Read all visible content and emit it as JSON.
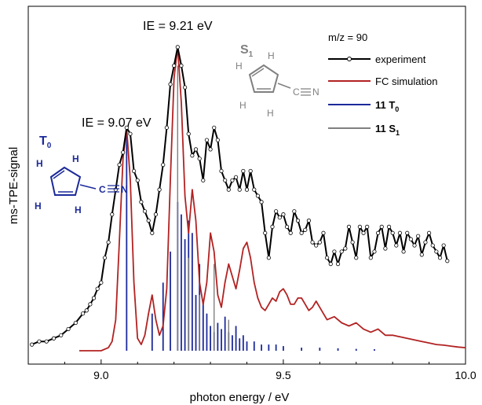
{
  "chart_data": {
    "type": "line",
    "xlabel": "photon energy / eV",
    "ylabel": "ms-TPE-signal",
    "xlim": [
      8.8,
      10.0
    ],
    "ylim": [
      0,
      1.0
    ],
    "x_ticks": [
      "9.0",
      "9.5",
      "10.0"
    ],
    "legend_header": "m/z = 90",
    "legend_position": "top-right",
    "annotations": [
      {
        "label": "IE = 9.21 eV",
        "x": 9.21,
        "y": 0.98
      },
      {
        "label": "IE = 9.07 eV",
        "x": 9.07,
        "y": 0.72
      }
    ],
    "structures": [
      {
        "label": "S",
        "sub": "1",
        "color": "#808080",
        "atoms": [
          "H",
          "H",
          "H",
          "H",
          "C",
          "N"
        ]
      },
      {
        "label": "T",
        "sub": "0",
        "color": "#1c2a9a",
        "atoms": [
          "H",
          "H",
          "H",
          "H",
          "C",
          "N"
        ]
      }
    ],
    "series": [
      {
        "name": "experiment",
        "color": "#000000",
        "marker": "open-circle",
        "x": [
          8.81,
          8.83,
          8.85,
          8.87,
          8.89,
          8.91,
          8.93,
          8.95,
          8.96,
          8.97,
          8.98,
          8.99,
          9.0,
          9.01,
          9.02,
          9.03,
          9.04,
          9.05,
          9.06,
          9.07,
          9.08,
          9.09,
          9.1,
          9.11,
          9.12,
          9.13,
          9.14,
          9.15,
          9.16,
          9.17,
          9.18,
          9.19,
          9.2,
          9.21,
          9.22,
          9.23,
          9.24,
          9.25,
          9.26,
          9.27,
          9.28,
          9.29,
          9.3,
          9.31,
          9.32,
          9.33,
          9.34,
          9.35,
          9.36,
          9.37,
          9.38,
          9.39,
          9.4,
          9.41,
          9.42,
          9.43,
          9.44,
          9.45,
          9.46,
          9.47,
          9.48,
          9.49,
          9.5,
          9.51,
          9.52,
          9.53,
          9.54,
          9.55,
          9.56,
          9.57,
          9.58,
          9.59,
          9.6,
          9.61,
          9.62,
          9.63,
          9.64,
          9.65,
          9.66,
          9.67,
          9.68,
          9.69,
          9.7,
          9.71,
          9.72,
          9.73,
          9.74,
          9.75,
          9.76,
          9.77,
          9.78,
          9.79,
          9.8,
          9.81,
          9.82,
          9.83,
          9.84,
          9.85,
          9.86,
          9.87,
          9.88,
          9.89,
          9.9,
          9.91,
          9.92,
          9.93,
          9.94,
          9.95
        ],
        "y": [
          0.02,
          0.03,
          0.03,
          0.04,
          0.05,
          0.07,
          0.09,
          0.12,
          0.13,
          0.15,
          0.17,
          0.2,
          0.22,
          0.3,
          0.35,
          0.44,
          0.52,
          0.6,
          0.64,
          0.72,
          0.7,
          0.58,
          0.55,
          0.48,
          0.45,
          0.42,
          0.38,
          0.44,
          0.52,
          0.6,
          0.72,
          0.86,
          0.92,
          0.98,
          0.92,
          0.85,
          0.7,
          0.63,
          0.65,
          0.62,
          0.55,
          0.68,
          0.65,
          0.72,
          0.68,
          0.58,
          0.55,
          0.52,
          0.55,
          0.56,
          0.52,
          0.58,
          0.52,
          0.58,
          0.52,
          0.5,
          0.48,
          0.38,
          0.3,
          0.4,
          0.45,
          0.43,
          0.44,
          0.4,
          0.38,
          0.45,
          0.42,
          0.38,
          0.39,
          0.42,
          0.35,
          0.34,
          0.35,
          0.38,
          0.3,
          0.28,
          0.32,
          0.28,
          0.32,
          0.33,
          0.4,
          0.35,
          0.3,
          0.4,
          0.38,
          0.4,
          0.3,
          0.32,
          0.38,
          0.4,
          0.33,
          0.4,
          0.38,
          0.34,
          0.38,
          0.32,
          0.38,
          0.36,
          0.34,
          0.37,
          0.31,
          0.35,
          0.38,
          0.34,
          0.32,
          0.3,
          0.34,
          0.29
        ]
      },
      {
        "name": "FC simulation",
        "color": "#b22222",
        "x": [
          8.94,
          8.96,
          8.98,
          9.0,
          9.02,
          9.03,
          9.04,
          9.05,
          9.06,
          9.07,
          9.08,
          9.09,
          9.1,
          9.11,
          9.12,
          9.13,
          9.14,
          9.15,
          9.16,
          9.17,
          9.18,
          9.19,
          9.2,
          9.21,
          9.22,
          9.23,
          9.24,
          9.25,
          9.26,
          9.27,
          9.28,
          9.29,
          9.3,
          9.31,
          9.32,
          9.33,
          9.34,
          9.35,
          9.36,
          9.37,
          9.38,
          9.39,
          9.4,
          9.41,
          9.42,
          9.43,
          9.44,
          9.45,
          9.46,
          9.47,
          9.48,
          9.49,
          9.5,
          9.51,
          9.52,
          9.53,
          9.54,
          9.55,
          9.56,
          9.57,
          9.58,
          9.59,
          9.6,
          9.62,
          9.64,
          9.66,
          9.68,
          9.7,
          9.72,
          9.74,
          9.76,
          9.78,
          9.8,
          9.82,
          9.84,
          9.86,
          9.88,
          9.9,
          9.92,
          9.94,
          9.96,
          9.98,
          10.0
        ],
        "y": [
          0.0,
          0.0,
          0.0,
          0.0,
          0.01,
          0.03,
          0.1,
          0.35,
          0.62,
          0.72,
          0.55,
          0.22,
          0.04,
          0.02,
          0.05,
          0.12,
          0.18,
          0.1,
          0.05,
          0.08,
          0.2,
          0.55,
          0.88,
          0.98,
          0.8,
          0.5,
          0.38,
          0.52,
          0.42,
          0.22,
          0.15,
          0.22,
          0.38,
          0.32,
          0.18,
          0.14,
          0.22,
          0.28,
          0.24,
          0.2,
          0.26,
          0.33,
          0.35,
          0.3,
          0.22,
          0.17,
          0.14,
          0.13,
          0.15,
          0.17,
          0.16,
          0.19,
          0.2,
          0.18,
          0.15,
          0.15,
          0.17,
          0.17,
          0.15,
          0.13,
          0.14,
          0.16,
          0.14,
          0.1,
          0.11,
          0.09,
          0.08,
          0.09,
          0.07,
          0.06,
          0.07,
          0.05,
          0.05,
          0.045,
          0.04,
          0.035,
          0.03,
          0.025,
          0.02,
          0.018,
          0.015,
          0.012,
          0.01
        ]
      },
      {
        "name": "11 T0",
        "label_main": "11 T",
        "label_sub": "0",
        "color": "#1c2a9a",
        "type": "stick",
        "x": [
          9.07,
          9.14,
          9.17,
          9.19,
          9.21,
          9.22,
          9.23,
          9.24,
          9.25,
          9.26,
          9.27,
          9.28,
          9.29,
          9.3,
          9.31,
          9.32,
          9.33,
          9.34,
          9.35,
          9.36,
          9.37,
          9.38,
          9.39,
          9.4,
          9.42,
          9.44,
          9.46,
          9.48,
          9.5,
          9.55,
          9.6,
          9.65,
          9.7,
          9.75
        ],
        "y": [
          0.72,
          0.12,
          0.22,
          0.32,
          0.48,
          0.44,
          0.36,
          0.42,
          0.38,
          0.18,
          0.28,
          0.16,
          0.12,
          0.08,
          0.06,
          0.09,
          0.07,
          0.11,
          0.06,
          0.05,
          0.08,
          0.04,
          0.05,
          0.03,
          0.03,
          0.02,
          0.02,
          0.02,
          0.015,
          0.01,
          0.01,
          0.008,
          0.006,
          0.005
        ]
      },
      {
        "name": "11 S1",
        "label_main": "11 S",
        "label_sub": "1",
        "color": "#808080",
        "type": "stick",
        "x": [
          9.21,
          9.24,
          9.27,
          9.31,
          9.35
        ],
        "y": [
          0.92,
          0.3,
          0.18,
          0.28,
          0.1
        ]
      }
    ]
  }
}
